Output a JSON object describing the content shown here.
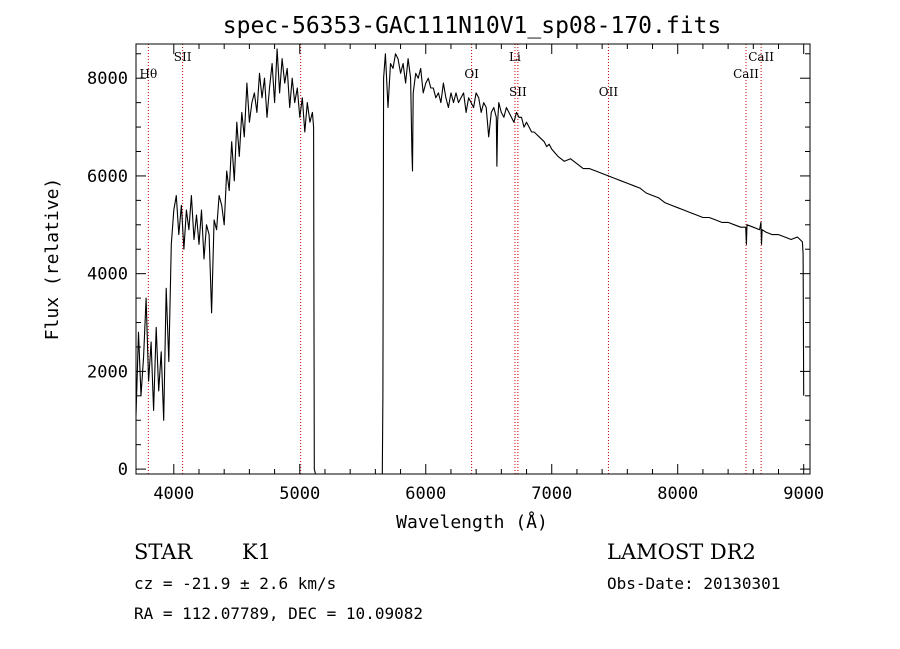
{
  "chart_data": {
    "type": "line",
    "title": "spec-56353-GAC111N10V1_sp08-170.fits",
    "xlabel": "Wavelength (Å)",
    "ylabel": "Flux (relative)",
    "xlim": [
      3700,
      9050
    ],
    "ylim": [
      -100,
      8700
    ],
    "xticks": [
      4000,
      5000,
      6000,
      7000,
      8000,
      9000
    ],
    "yticks": [
      0,
      2000,
      4000,
      6000,
      8000
    ],
    "series": [
      {
        "segments": [
          {
            "x": [
              3700,
              3720,
              3740,
              3760,
              3780,
              3800,
              3820,
              3840,
              3860,
              3880,
              3900,
              3920,
              3940,
              3960,
              3980,
              4000,
              4020,
              4040,
              4060,
              4080,
              4100,
              4120,
              4140,
              4160,
              4180,
              4200,
              4220,
              4240,
              4260,
              4280,
              4300,
              4320,
              4340,
              4360,
              4380,
              4400,
              4420,
              4440,
              4460,
              4480,
              4500,
              4520,
              4540,
              4560,
              4580,
              4600,
              4620,
              4640,
              4660,
              4680,
              4700,
              4720,
              4740,
              4760,
              4780,
              4800,
              4820,
              4840,
              4860,
              4880,
              4900,
              4920,
              4940,
              4960,
              4980,
              5000,
              5020,
              5040,
              5060,
              5080,
              5100,
              5110,
              5115,
              5125
            ],
            "y": [
              1100,
              2800,
              1500,
              2300,
              3500,
              1800,
              2600,
              1200,
              2900,
              1600,
              2400,
              1000,
              3700,
              2200,
              4600,
              5300,
              5600,
              4800,
              5400,
              4500,
              5300,
              4900,
              5600,
              4700,
              5200,
              4600,
              5300,
              4300,
              5000,
              4800,
              3200,
              5100,
              4900,
              5600,
              5400,
              5000,
              6100,
              5700,
              6700,
              5900,
              7100,
              6400,
              7300,
              6800,
              7900,
              7100,
              7500,
              7700,
              7300,
              8100,
              7600,
              8000,
              7200,
              7800,
              8300,
              7500,
              8600,
              7700,
              8400,
              7900,
              8200,
              7400,
              8000,
              7500,
              7800,
              7200,
              7600,
              6900,
              7500,
              7100,
              7300,
              7000,
              0,
              -100
            ]
          },
          {
            "x": [
              5655,
              5660,
              5665,
              5680,
              5700,
              5720,
              5740,
              5760,
              5780,
              5800,
              5820,
              5840,
              5860,
              5880,
              5890,
              5895,
              5900,
              5920,
              5940,
              5960,
              5980,
              6000,
              6020,
              6040,
              6060,
              6080,
              6100,
              6120,
              6140,
              6160,
              6180,
              6200,
              6220,
              6240,
              6260,
              6280,
              6300,
              6320,
              6340,
              6360,
              6380,
              6400,
              6420,
              6440,
              6460,
              6480,
              6500,
              6520,
              6540,
              6560,
              6565,
              6570,
              6580,
              6600,
              6620,
              6640,
              6660,
              6680,
              6700,
              6720,
              6740,
              6760,
              6780,
              6800,
              6820,
              6840,
              6860,
              6880,
              6900,
              6920,
              6940,
              6960,
              6980,
              7000,
              7050,
              7100,
              7150,
              7200,
              7250,
              7300,
              7350,
              7400,
              7450,
              7500,
              7550,
              7600,
              7650,
              7700,
              7750,
              7800,
              7850,
              7900,
              7950,
              8000,
              8050,
              8100,
              8150,
              8200,
              8250,
              8300,
              8350,
              8400,
              8450,
              8500,
              8540,
              8545,
              8550,
              8600,
              8650,
              8660,
              8665,
              8670,
              8700,
              8750,
              8800,
              8850,
              8900,
              8950,
              8990,
              8995,
              9000
            ],
            "y": [
              -100,
              1500,
              8000,
              8500,
              7400,
              8300,
              8200,
              8500,
              8400,
              8100,
              8300,
              7900,
              8400,
              8000,
              6500,
              6100,
              7700,
              8100,
              8000,
              8200,
              7700,
              7900,
              8000,
              7800,
              7800,
              7600,
              7700,
              7500,
              7900,
              7600,
              7400,
              7700,
              7500,
              7700,
              7500,
              7600,
              7700,
              7300,
              7600,
              7500,
              7400,
              7700,
              7600,
              7300,
              7500,
              7400,
              6800,
              7300,
              7400,
              7200,
              6200,
              7100,
              7500,
              7300,
              7200,
              7400,
              7300,
              7200,
              7100,
              7300,
              7200,
              7200,
              7000,
              7100,
              7000,
              6900,
              6900,
              6850,
              6800,
              6750,
              6700,
              6600,
              6650,
              6550,
              6400,
              6300,
              6350,
              6250,
              6150,
              6150,
              6100,
              6050,
              6000,
              5950,
              5900,
              5850,
              5800,
              5750,
              5650,
              5600,
              5550,
              5450,
              5400,
              5350,
              5300,
              5250,
              5200,
              5150,
              5150,
              5100,
              5050,
              5050,
              5000,
              4950,
              4950,
              4600,
              5000,
              4950,
              4900,
              5050,
              4600,
              4900,
              4850,
              4800,
              4800,
              4750,
              4700,
              4750,
              4650,
              4400,
              1500
            ]
          }
        ]
      }
    ],
    "line_markers": [
      {
        "label": "Hθ",
        "x": 3798,
        "row": 2
      },
      {
        "label": "SII",
        "x": 4070,
        "row": 1
      },
      {
        "label": "",
        "x": 5007,
        "row": 2
      },
      {
        "label": "OI",
        "x": 6364,
        "row": 2
      },
      {
        "label": "Li",
        "x": 6708,
        "row": 1
      },
      {
        "label": "SII",
        "x": 6731,
        "row": 3
      },
      {
        "label": "OII",
        "x": 7450,
        "row": 3
      },
      {
        "label": "CaII",
        "x": 8542,
        "row": 2
      },
      {
        "label": "CaII",
        "x": 8662,
        "row": 1
      }
    ],
    "grid": false,
    "legend": "none"
  },
  "info": {
    "object_class": "STAR",
    "subclass": "K1",
    "survey": "LAMOST DR2",
    "redshift": "cz = -21.9 ± 2.6 km/s",
    "obs_date": "Obs-Date: 20130301",
    "coords": "RA = 112.07789, DEC =  10.09082"
  },
  "colors": {
    "spectrum": "#000000",
    "marker_line": "#cc0000",
    "background": "#ffffff"
  }
}
